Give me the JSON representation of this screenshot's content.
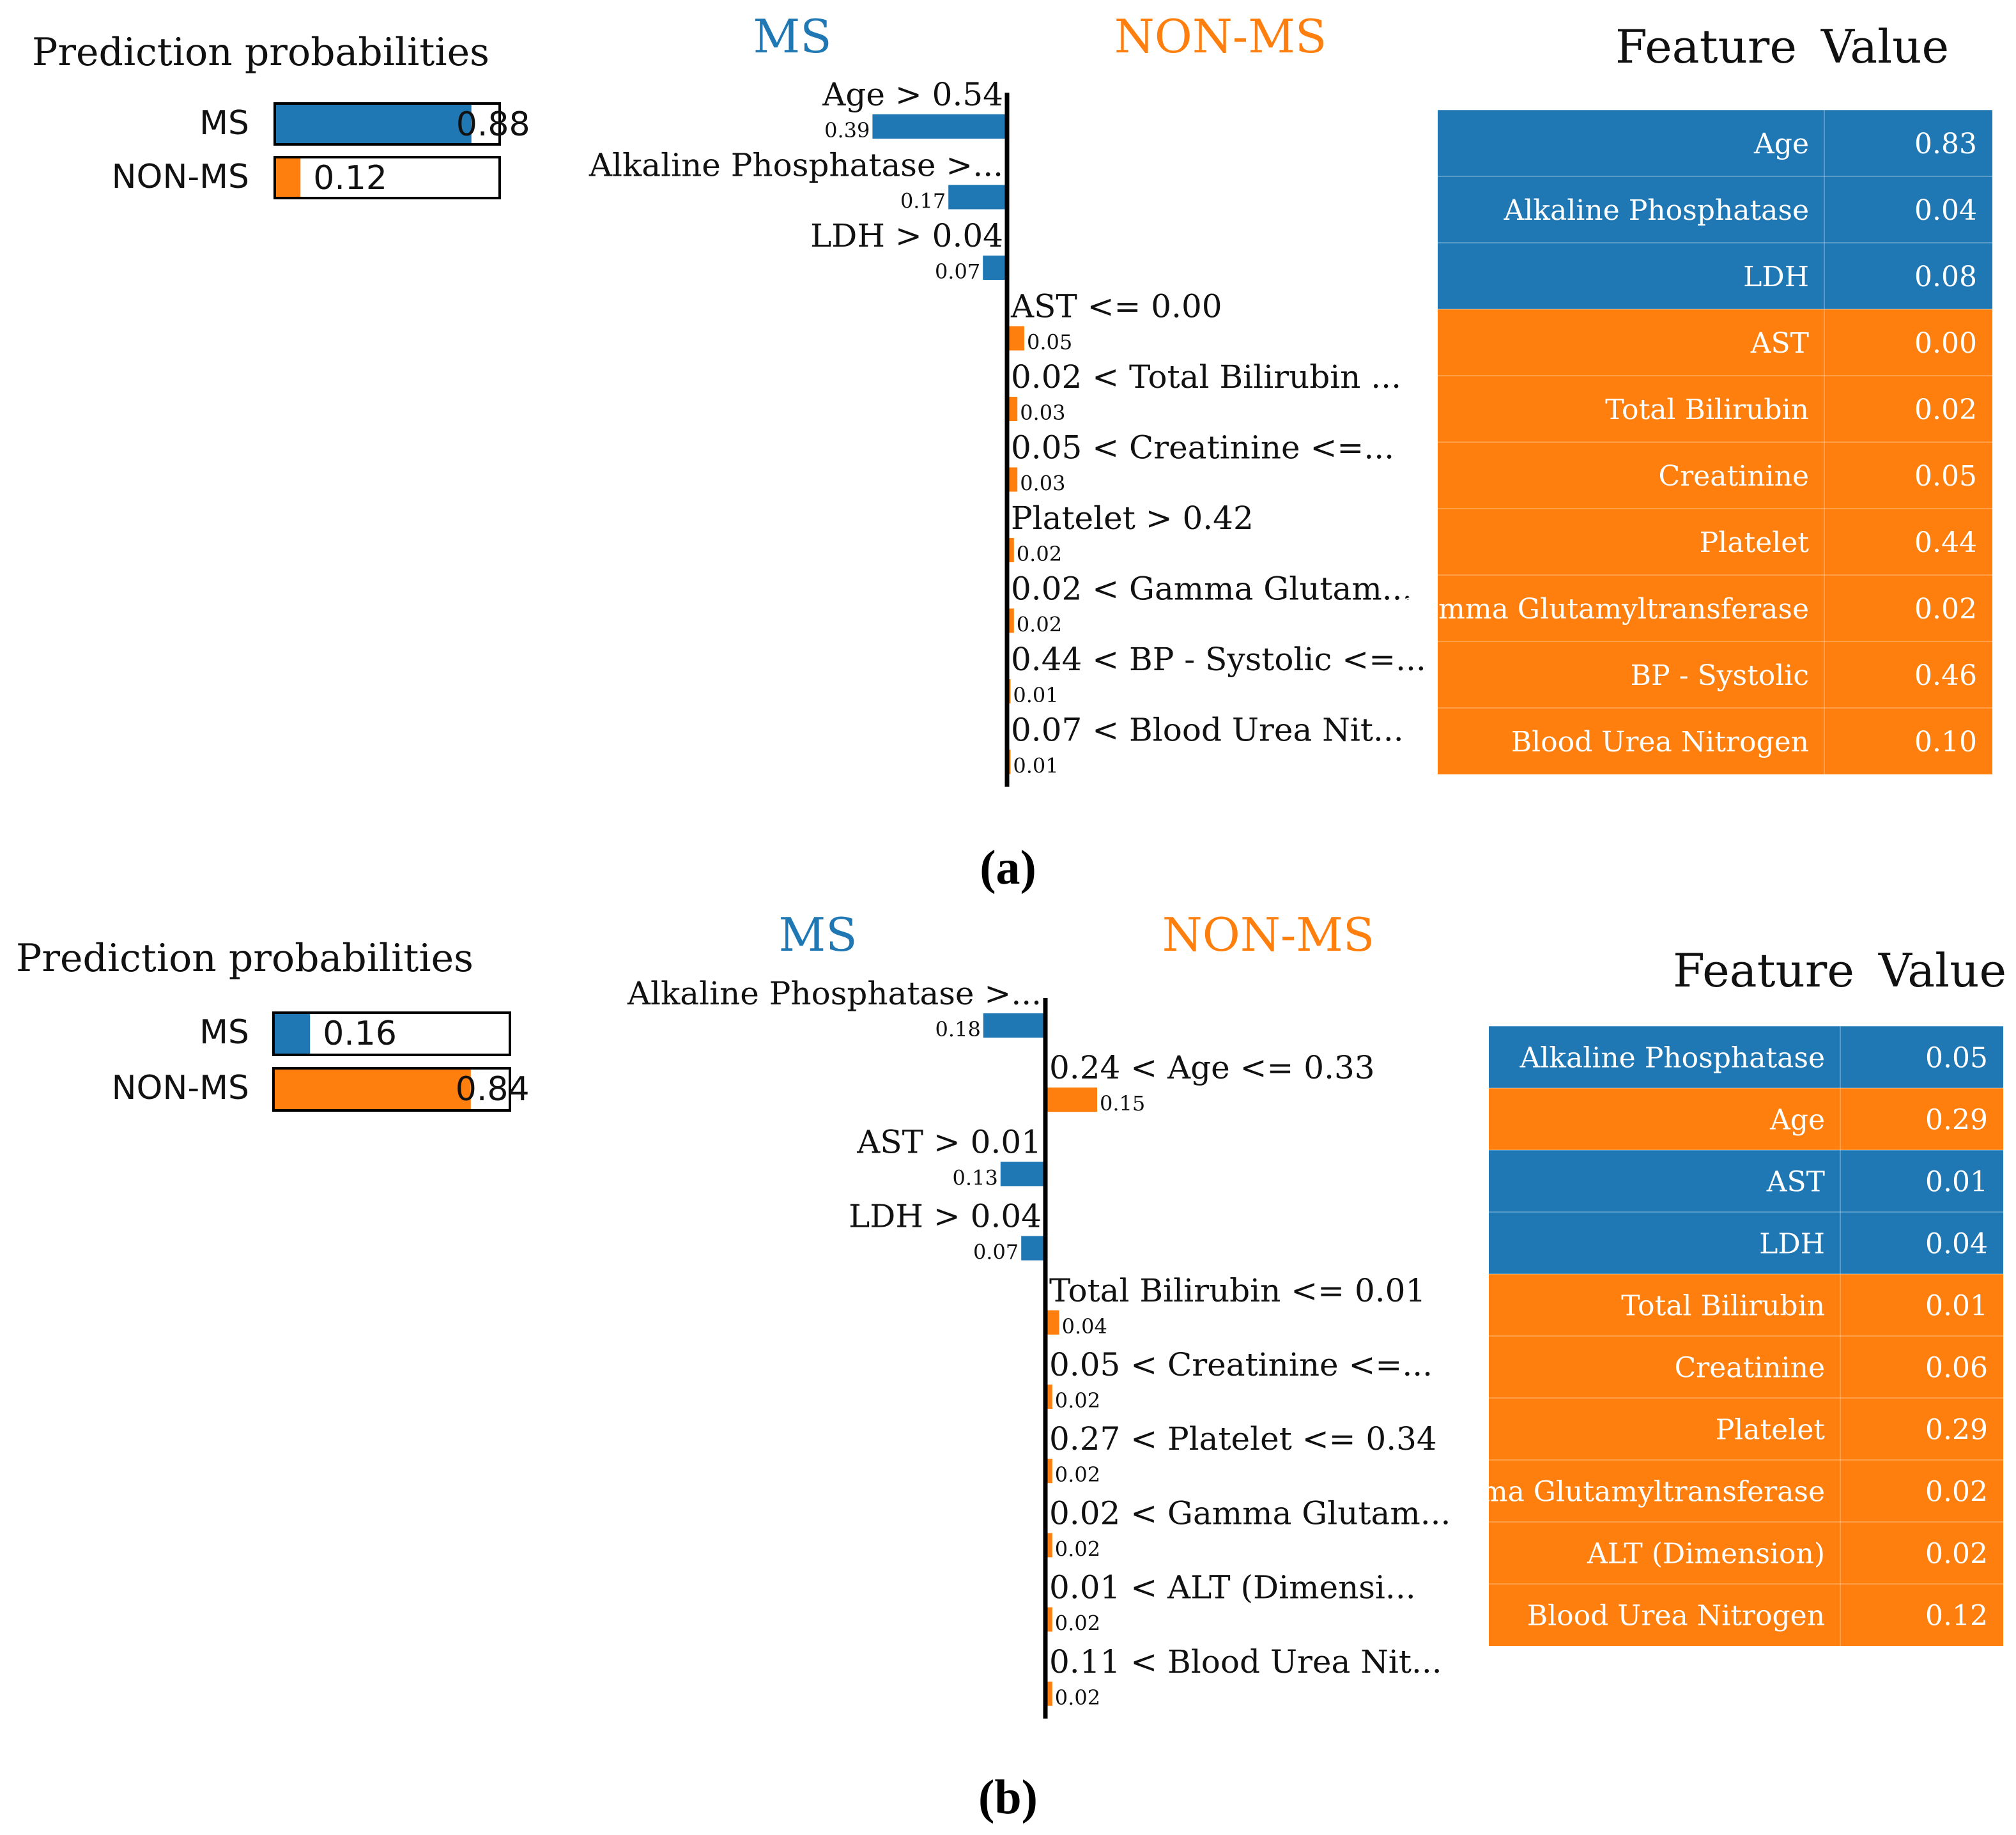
{
  "colors": {
    "ms": "#1f77b4",
    "non_ms": "#ff7f0e",
    "axis": "#000000",
    "bar_outline": "#000000"
  },
  "chart_data": [
    {
      "type": "bar",
      "panel_label": "(a)",
      "probabilities": {
        "title": "Prediction probabilities",
        "classes": [
          {
            "name": "MS",
            "value": 0.88,
            "label": "0.88"
          },
          {
            "name": "NON-MS",
            "value": 0.12,
            "label": "0.12"
          }
        ]
      },
      "contributions": {
        "class_negative": "MS",
        "class_positive": "NON-MS",
        "items": [
          {
            "label": "Age > 0.54",
            "weight": 0.39,
            "value_label": "0.39",
            "side": "MS"
          },
          {
            "label": "Alkaline Phosphatase >...",
            "weight": 0.17,
            "value_label": "0.17",
            "side": "MS"
          },
          {
            "label": "LDH > 0.04",
            "weight": 0.07,
            "value_label": "0.07",
            "side": "MS"
          },
          {
            "label": "AST <= 0.00",
            "weight": 0.05,
            "value_label": "0.05",
            "side": "NON-MS"
          },
          {
            "label": "0.02 < Total Bilirubin ...",
            "weight": 0.03,
            "value_label": "0.03",
            "side": "NON-MS"
          },
          {
            "label": "0.05 < Creatinine <=...",
            "weight": 0.03,
            "value_label": "0.03",
            "side": "NON-MS"
          },
          {
            "label": "Platelet > 0.42",
            "weight": 0.02,
            "value_label": "0.02",
            "side": "NON-MS"
          },
          {
            "label": "0.02 < Gamma Glutam...",
            "weight": 0.02,
            "value_label": "0.02",
            "side": "NON-MS"
          },
          {
            "label": "0.44 < BP - Systolic <=...",
            "weight": 0.01,
            "value_label": "0.01",
            "side": "NON-MS"
          },
          {
            "label": "0.07 < Blood Urea Nit...",
            "weight": 0.01,
            "value_label": "0.01",
            "side": "NON-MS"
          }
        ]
      },
      "table": {
        "headers": [
          "Feature",
          "Value"
        ],
        "rows": [
          {
            "feature": "Age",
            "value": "0.83",
            "side": "MS"
          },
          {
            "feature": "Alkaline Phosphatase",
            "value": "0.04",
            "side": "MS"
          },
          {
            "feature": "LDH",
            "value": "0.08",
            "side": "MS"
          },
          {
            "feature": "AST",
            "value": "0.00",
            "side": "NON-MS"
          },
          {
            "feature": "Total Bilirubin",
            "value": "0.02",
            "side": "NON-MS"
          },
          {
            "feature": "Creatinine",
            "value": "0.05",
            "side": "NON-MS"
          },
          {
            "feature": "Platelet",
            "value": "0.44",
            "side": "NON-MS"
          },
          {
            "feature": "Gamma Glutamyltransferase",
            "value": "0.02",
            "side": "NON-MS"
          },
          {
            "feature": "BP - Systolic",
            "value": "0.46",
            "side": "NON-MS"
          },
          {
            "feature": "Blood Urea Nitrogen",
            "value": "0.10",
            "side": "NON-MS"
          }
        ]
      }
    },
    {
      "type": "bar",
      "panel_label": "(b)",
      "probabilities": {
        "title": "Prediction probabilities",
        "classes": [
          {
            "name": "MS",
            "value": 0.16,
            "label": "0.16"
          },
          {
            "name": "NON-MS",
            "value": 0.84,
            "label": "0.84"
          }
        ]
      },
      "contributions": {
        "class_negative": "MS",
        "class_positive": "NON-MS",
        "items": [
          {
            "label": "Alkaline Phosphatase >...",
            "weight": 0.18,
            "value_label": "0.18",
            "side": "MS"
          },
          {
            "label": "0.24 < Age <= 0.33",
            "weight": 0.15,
            "value_label": "0.15",
            "side": "NON-MS"
          },
          {
            "label": "AST > 0.01",
            "weight": 0.13,
            "value_label": "0.13",
            "side": "MS"
          },
          {
            "label": "LDH > 0.04",
            "weight": 0.07,
            "value_label": "0.07",
            "side": "MS"
          },
          {
            "label": "Total Bilirubin <= 0.01",
            "weight": 0.04,
            "value_label": "0.04",
            "side": "NON-MS"
          },
          {
            "label": "0.05 < Creatinine <=...",
            "weight": 0.02,
            "value_label": "0.02",
            "side": "NON-MS"
          },
          {
            "label": "0.27 < Platelet <= 0.34",
            "weight": 0.02,
            "value_label": "0.02",
            "side": "NON-MS"
          },
          {
            "label": "0.02 < Gamma Glutam...",
            "weight": 0.02,
            "value_label": "0.02",
            "side": "NON-MS"
          },
          {
            "label": "0.01 < ALT (Dimensi...",
            "weight": 0.02,
            "value_label": "0.02",
            "side": "NON-MS"
          },
          {
            "label": "0.11 < Blood Urea Nit...",
            "weight": 0.02,
            "value_label": "0.02",
            "side": "NON-MS"
          }
        ]
      },
      "table": {
        "headers": [
          "Feature",
          "Value"
        ],
        "rows": [
          {
            "feature": "Alkaline Phosphatase",
            "value": "0.05",
            "side": "MS"
          },
          {
            "feature": "Age",
            "value": "0.29",
            "side": "NON-MS"
          },
          {
            "feature": "AST",
            "value": "0.01",
            "side": "MS"
          },
          {
            "feature": "LDH",
            "value": "0.04",
            "side": "MS"
          },
          {
            "feature": "Total Bilirubin",
            "value": "0.01",
            "side": "NON-MS"
          },
          {
            "feature": "Creatinine",
            "value": "0.06",
            "side": "NON-MS"
          },
          {
            "feature": "Platelet",
            "value": "0.29",
            "side": "NON-MS"
          },
          {
            "feature": "Gamma Glutamyltransferase",
            "value": "0.02",
            "side": "NON-MS"
          },
          {
            "feature": "ALT (Dimension)",
            "value": "0.02",
            "side": "NON-MS"
          },
          {
            "feature": "Blood Urea Nitrogen",
            "value": "0.12",
            "side": "NON-MS"
          }
        ]
      }
    }
  ]
}
